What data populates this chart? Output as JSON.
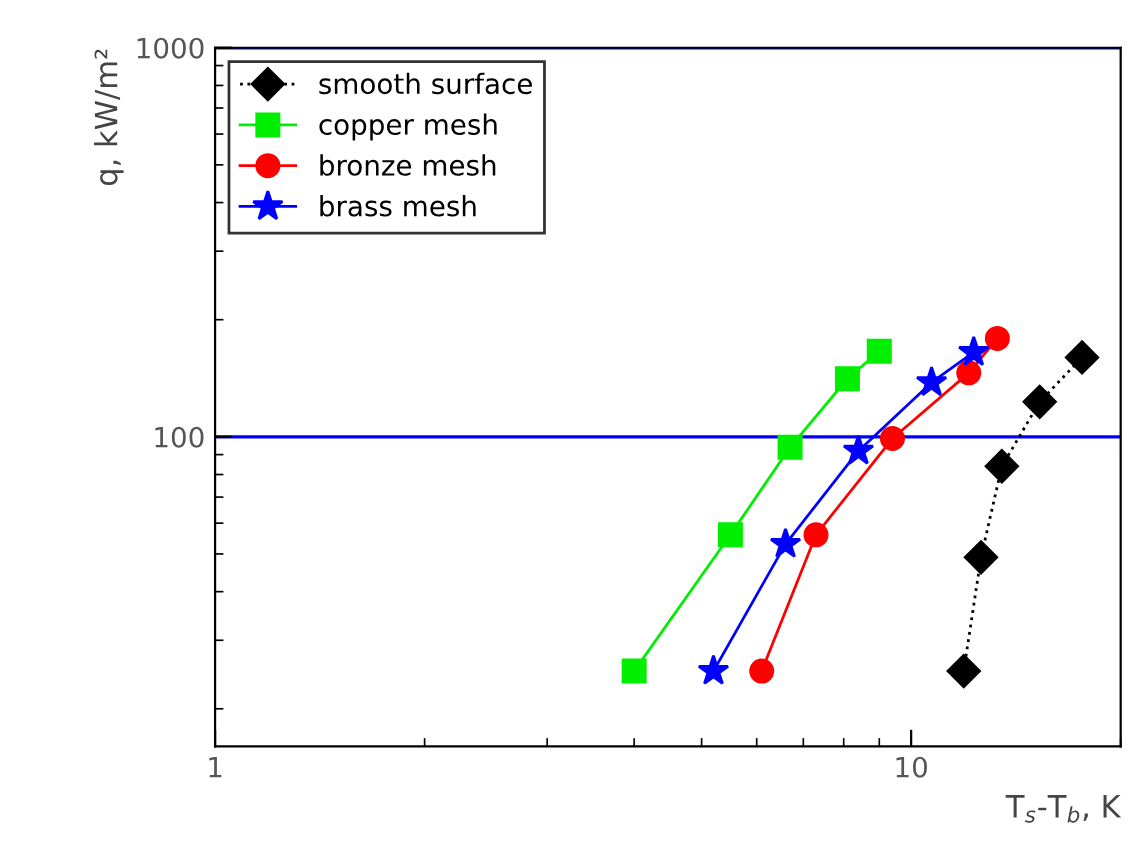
{
  "chart_data": {
    "type": "line",
    "xlabel": "T$_{s}$-T$_{b}$, K",
    "ylabel": "q, kW/m²",
    "log": "xy",
    "xlim": [
      1,
      20
    ],
    "ylim": [
      16,
      1000
    ],
    "xticks": [
      1,
      10
    ],
    "yticks": [
      100,
      1000
    ],
    "grid": false,
    "legend": "top left",
    "ref_lines": [
      {
        "axis": "y",
        "value": 100,
        "color": "#0000ff"
      },
      {
        "axis": "y",
        "value": 1000,
        "color": "#0000ff"
      }
    ],
    "series": [
      {
        "name": "smooth surface",
        "color": "#000000",
        "marker": "diamond",
        "line_style": "dotted",
        "x": [
          11.9,
          12.6,
          13.5,
          15.3,
          17.6
        ],
        "values": [
          25,
          49,
          84,
          123,
          160
        ]
      },
      {
        "name": "copper mesh",
        "color": "#00ee00",
        "marker": "square",
        "line_style": "solid",
        "x": [
          4.0,
          5.5,
          6.7,
          8.1,
          9.0
        ],
        "values": [
          25,
          56,
          94,
          141,
          166
        ]
      },
      {
        "name": "bronze mesh",
        "color": "#ff0000",
        "marker": "circle",
        "line_style": "solid",
        "x": [
          6.1,
          7.3,
          9.4,
          12.1,
          13.3
        ],
        "values": [
          25,
          56,
          99,
          146,
          179
        ]
      },
      {
        "name": "brass mesh",
        "color": "#0000ff",
        "marker": "star",
        "line_style": "solid",
        "x": [
          5.2,
          6.6,
          8.4,
          10.7,
          12.3
        ],
        "values": [
          25,
          53,
          92,
          138,
          165
        ]
      }
    ]
  }
}
